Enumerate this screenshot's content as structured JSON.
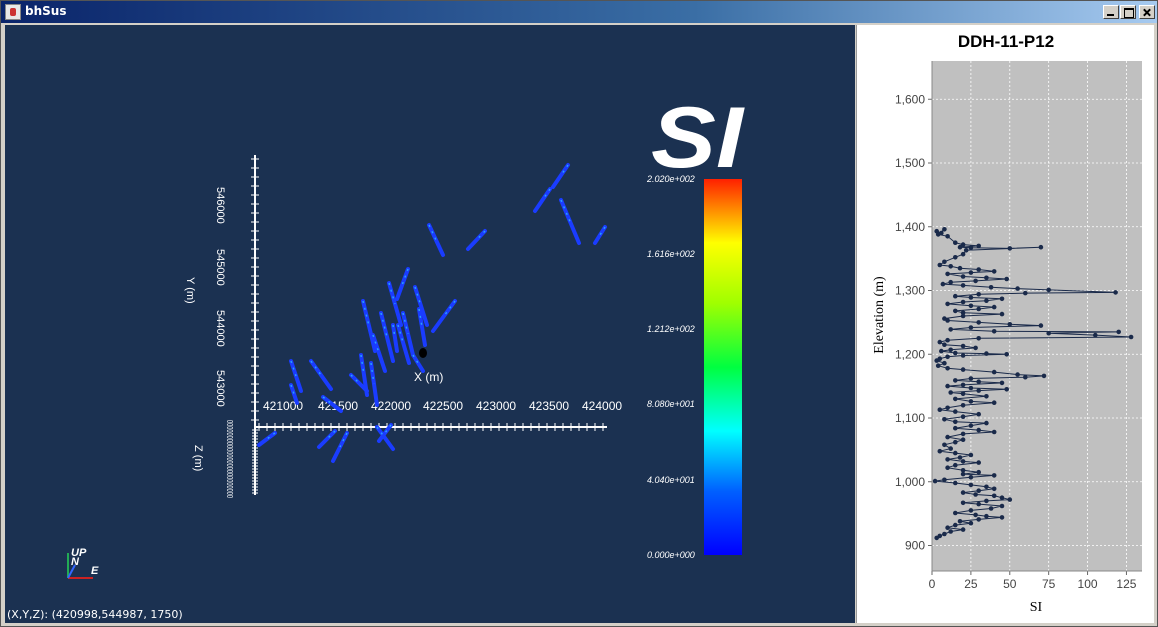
{
  "window": {
    "title": "bhSus"
  },
  "viewer": {
    "colorbar": {
      "title": "SI",
      "labels": [
        "2.020e+002",
        "1.616e+002",
        "1.212e+002",
        "8.080e+001",
        "4.040e+001",
        "0.000e+000"
      ]
    },
    "axes": {
      "x_label": "X (m)",
      "x_ticks": [
        "421000",
        "421500",
        "422000",
        "422500",
        "423000",
        "423500",
        "424000"
      ],
      "y_label": "Y (m)",
      "y_ticks": [
        "546000",
        "545000",
        "544000",
        "543000"
      ],
      "z_label": "Z (m)",
      "z_ticks": "0000000000000000000000000"
    },
    "orientation": {
      "up": "UP",
      "north": "N",
      "east": "E"
    },
    "coord_readout": "(X,Y,Z): (420998,544987,  1750)"
  },
  "plot": {
    "title": "DDH-11-P12",
    "ylabel": "Elevation (m)",
    "xlabel": "SI"
  },
  "chart_data": {
    "type": "line",
    "title": "DDH-11-P12",
    "xlabel": "SI",
    "ylabel": "Elevation (m)",
    "xlim": [
      0,
      135
    ],
    "ylim": [
      860,
      1660
    ],
    "x_ticks": [
      0,
      25,
      50,
      75,
      100,
      125
    ],
    "y_ticks": [
      900,
      1000,
      1100,
      1200,
      1300,
      1400,
      1500,
      1600
    ],
    "y_tick_labels": [
      "900",
      "1,000",
      "1,100",
      "1,200",
      "1,300",
      "1,400",
      "1,500",
      "1,600"
    ],
    "grid": true,
    "marker_color": "#1a2a4a",
    "background": "#c0c0c0",
    "series": [
      {
        "points": [
          [
            3,
            1393
          ],
          [
            6,
            1390
          ],
          [
            8,
            1396
          ],
          [
            4,
            1388
          ],
          [
            10,
            1385
          ],
          [
            15,
            1375
          ],
          [
            20,
            1372
          ],
          [
            30,
            1370
          ],
          [
            18,
            1368
          ],
          [
            25,
            1367
          ],
          [
            50,
            1366
          ],
          [
            70,
            1368
          ],
          [
            22,
            1363
          ],
          [
            20,
            1357
          ],
          [
            15,
            1352
          ],
          [
            8,
            1345
          ],
          [
            5,
            1340
          ],
          [
            12,
            1338
          ],
          [
            18,
            1335
          ],
          [
            30,
            1333
          ],
          [
            40,
            1330
          ],
          [
            25,
            1328
          ],
          [
            10,
            1326
          ],
          [
            20,
            1322
          ],
          [
            35,
            1320
          ],
          [
            48,
            1318
          ],
          [
            28,
            1315
          ],
          [
            12,
            1313
          ],
          [
            7,
            1310
          ],
          [
            20,
            1308
          ],
          [
            38,
            1305
          ],
          [
            55,
            1303
          ],
          [
            75,
            1301
          ],
          [
            118,
            1297
          ],
          [
            60,
            1296
          ],
          [
            30,
            1294
          ],
          [
            15,
            1291
          ],
          [
            25,
            1289
          ],
          [
            45,
            1287
          ],
          [
            35,
            1284
          ],
          [
            20,
            1282
          ],
          [
            10,
            1279
          ],
          [
            25,
            1276
          ],
          [
            40,
            1274
          ],
          [
            30,
            1271
          ],
          [
            15,
            1268
          ],
          [
            20,
            1265
          ],
          [
            45,
            1263
          ],
          [
            20,
            1260
          ],
          [
            8,
            1256
          ],
          [
            10,
            1253
          ],
          [
            30,
            1250
          ],
          [
            50,
            1247
          ],
          [
            70,
            1245
          ],
          [
            25,
            1242
          ],
          [
            12,
            1239
          ],
          [
            40,
            1236
          ],
          [
            120,
            1235
          ],
          [
            75,
            1233
          ],
          [
            105,
            1230
          ],
          [
            128,
            1227
          ],
          [
            30,
            1225
          ],
          [
            10,
            1222
          ],
          [
            5,
            1219
          ],
          [
            8,
            1215
          ],
          [
            20,
            1213
          ],
          [
            28,
            1210
          ],
          [
            12,
            1207
          ],
          [
            6,
            1205
          ],
          [
            15,
            1202
          ],
          [
            35,
            1201
          ],
          [
            48,
            1200
          ],
          [
            20,
            1198
          ],
          [
            10,
            1196
          ],
          [
            5,
            1193
          ],
          [
            3,
            1190
          ],
          [
            8,
            1186
          ],
          [
            4,
            1182
          ],
          [
            10,
            1178
          ],
          [
            20,
            1176
          ],
          [
            40,
            1172
          ],
          [
            55,
            1168
          ],
          [
            72,
            1166
          ],
          [
            60,
            1164
          ],
          [
            25,
            1162
          ],
          [
            15,
            1159
          ],
          [
            30,
            1157
          ],
          [
            45,
            1155
          ],
          [
            20,
            1152
          ],
          [
            10,
            1150
          ],
          [
            25,
            1147
          ],
          [
            48,
            1145
          ],
          [
            30,
            1143
          ],
          [
            12,
            1140
          ],
          [
            20,
            1138
          ],
          [
            35,
            1134
          ],
          [
            15,
            1130
          ],
          [
            25,
            1126
          ],
          [
            40,
            1124
          ],
          [
            20,
            1120
          ],
          [
            10,
            1116
          ],
          [
            5,
            1113
          ],
          [
            15,
            1110
          ],
          [
            30,
            1106
          ],
          [
            20,
            1102
          ],
          [
            8,
            1098
          ],
          [
            15,
            1094
          ],
          [
            35,
            1092
          ],
          [
            25,
            1088
          ],
          [
            15,
            1084
          ],
          [
            30,
            1081
          ],
          [
            40,
            1078
          ],
          [
            20,
            1075
          ],
          [
            10,
            1070
          ],
          [
            20,
            1066
          ],
          [
            15,
            1062
          ],
          [
            8,
            1058
          ],
          [
            12,
            1052
          ],
          [
            5,
            1048
          ],
          [
            15,
            1045
          ],
          [
            25,
            1042
          ],
          [
            18,
            1038
          ],
          [
            10,
            1035
          ],
          [
            20,
            1032
          ],
          [
            30,
            1030
          ],
          [
            15,
            1026
          ],
          [
            10,
            1022
          ],
          [
            20,
            1018
          ],
          [
            30,
            1015
          ],
          [
            20,
            1012
          ],
          [
            40,
            1010
          ],
          [
            25,
            1007
          ],
          [
            8,
            1003
          ],
          [
            2,
            1001
          ],
          [
            15,
            998
          ],
          [
            25,
            995
          ],
          [
            35,
            992
          ],
          [
            40,
            989
          ],
          [
            30,
            986
          ],
          [
            20,
            983
          ],
          [
            28,
            980
          ],
          [
            40,
            978
          ],
          [
            45,
            975
          ],
          [
            50,
            972
          ],
          [
            35,
            970
          ],
          [
            20,
            967
          ],
          [
            30,
            965
          ],
          [
            45,
            962
          ],
          [
            38,
            958
          ],
          [
            25,
            955
          ],
          [
            15,
            951
          ],
          [
            28,
            948
          ],
          [
            35,
            946
          ],
          [
            45,
            944
          ],
          [
            30,
            941
          ],
          [
            18,
            938
          ],
          [
            25,
            935
          ],
          [
            15,
            932
          ],
          [
            10,
            928
          ],
          [
            20,
            925
          ],
          [
            12,
            922
          ],
          [
            8,
            918
          ],
          [
            5,
            915
          ],
          [
            3,
            912
          ]
        ]
      }
    ]
  }
}
